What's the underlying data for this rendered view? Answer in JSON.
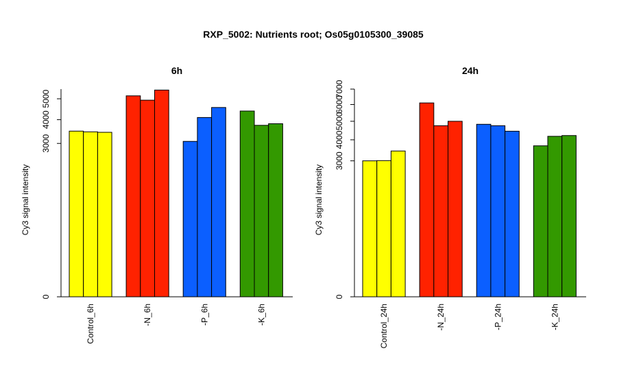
{
  "title": "RXP_5002: Nutrients root; Os05g0105300_39085",
  "chart_data": [
    {
      "type": "bar",
      "title": "6h",
      "ylabel": "Cy3 signal intensity",
      "categories": [
        "Control_6h",
        "-N_6h",
        "-P_6h",
        "-K_6h"
      ],
      "colors": [
        "#ffff00",
        "#ff2200",
        "#0b5fff",
        "#339900"
      ],
      "values": [
        [
          3500,
          3470,
          3450
        ],
        [
          5150,
          4930,
          5450
        ],
        [
          3080,
          4100,
          4570
        ],
        [
          4400,
          3750,
          3820
        ]
      ],
      "yticks": [
        0,
        3000,
        4000,
        5000
      ],
      "ytick_labels": [
        "0",
        "3000",
        "4000",
        "5000"
      ],
      "ylim": [
        0,
        5500
      ],
      "scale": "sqrt"
    },
    {
      "type": "bar",
      "title": "24h",
      "ylabel": "Cy3 signal intensity",
      "categories": [
        "Control_24h",
        "-N_24h",
        "-P_24h",
        "-K_24h"
      ],
      "colors": [
        "#ffff00",
        "#ff2200",
        "#0b5fff",
        "#339900"
      ],
      "values": [
        [
          3000,
          3010,
          3450
        ],
        [
          6100,
          4750,
          5000
        ],
        [
          4830,
          4750,
          4450
        ],
        [
          3700,
          4180,
          4220
        ]
      ],
      "yticks": [
        0,
        3000,
        4000,
        5000,
        6000,
        7000
      ],
      "ytick_labels": [
        "0",
        "3000",
        "4000",
        "5000",
        "6000",
        "7000"
      ],
      "ylim": [
        0,
        7000
      ],
      "scale": "sqrt"
    }
  ]
}
